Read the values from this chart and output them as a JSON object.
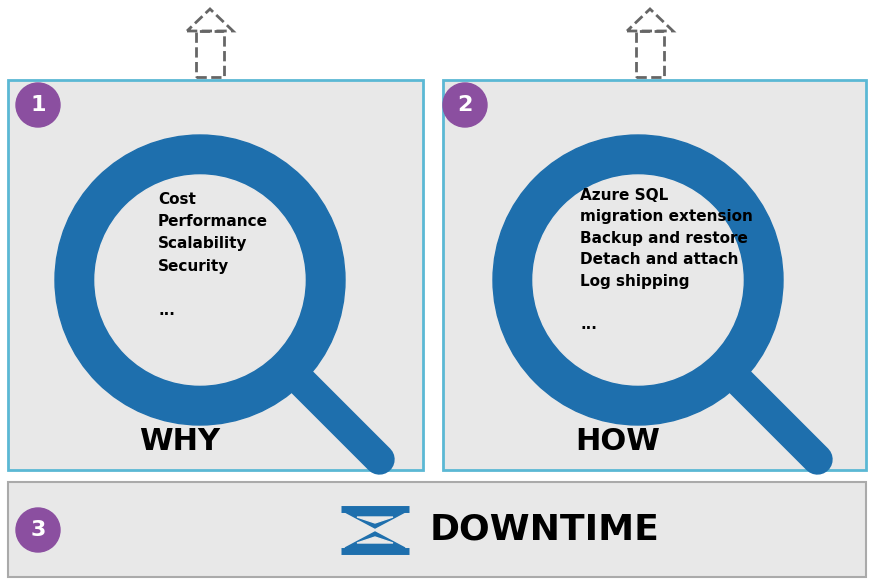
{
  "bg_color": "#ffffff",
  "panel_bg": "#e8e8e8",
  "box_border_color": "#5bb8d4",
  "magnifier_color": "#1e6fad",
  "magnifier_inner": "#e8e8e8",
  "circle_badge_color": "#8b4fa0",
  "circle_badge_text_color": "#ffffff",
  "hourglass_color": "#1e6fad",
  "panel1_label": "WHY",
  "panel2_label": "HOW",
  "panel1_text": "Cost\nPerformance\nScalability\nSecurity\n\n...",
  "panel2_text": "Azure SQL\nmigration extension\nBackup and restore\nDetach and attach\nLog shipping\n\n...",
  "downtime_text": "DOWNTIME",
  "badge1": "1",
  "badge2": "2",
  "badge3": "3",
  "label_fontsize": 22,
  "text_fontsize": 11,
  "downtime_fontsize": 26,
  "badge_fontsize": 16
}
